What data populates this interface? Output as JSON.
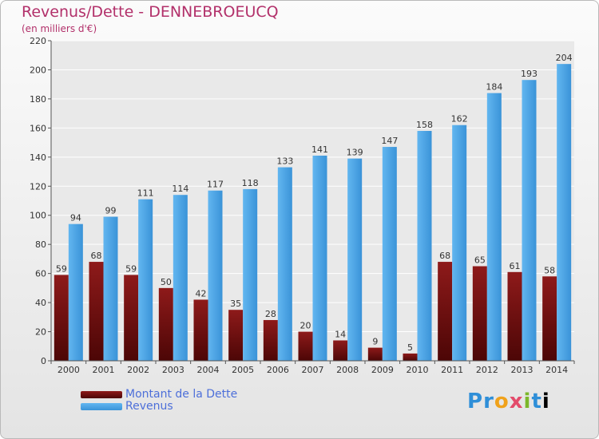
{
  "title": "Revenus/Dette - DENNEBROEUCQ",
  "subtitle": "(en milliers d'€)",
  "logo_text": "Proxiti",
  "colors": {
    "title": "#b2306a",
    "dette": "#7a1111",
    "revenus": "#3fa0e6",
    "legend_text": "#4d6fd9"
  },
  "chart_data": {
    "type": "bar",
    "title": "Revenus/Dette - DENNEBROEUCQ",
    "subtitle": "(en milliers d'€)",
    "categories": [
      "2000",
      "2001",
      "2002",
      "2003",
      "2004",
      "2005",
      "2006",
      "2007",
      "2008",
      "2009",
      "2010",
      "2011",
      "2012",
      "2013",
      "2014"
    ],
    "series": [
      {
        "name": "Montant de la Dette",
        "values": [
          59,
          68,
          59,
          50,
          42,
          35,
          28,
          20,
          14,
          9,
          5,
          68,
          65,
          61,
          58
        ]
      },
      {
        "name": "Revenus",
        "values": [
          94,
          99,
          111,
          114,
          117,
          118,
          133,
          141,
          139,
          147,
          158,
          162,
          184,
          193,
          204
        ]
      }
    ],
    "ylim": [
      0,
      220
    ],
    "yticks": [
      0,
      20,
      40,
      60,
      80,
      100,
      120,
      140,
      160,
      180,
      200,
      220
    ],
    "grid": true,
    "legend_position": "bottom-left"
  }
}
